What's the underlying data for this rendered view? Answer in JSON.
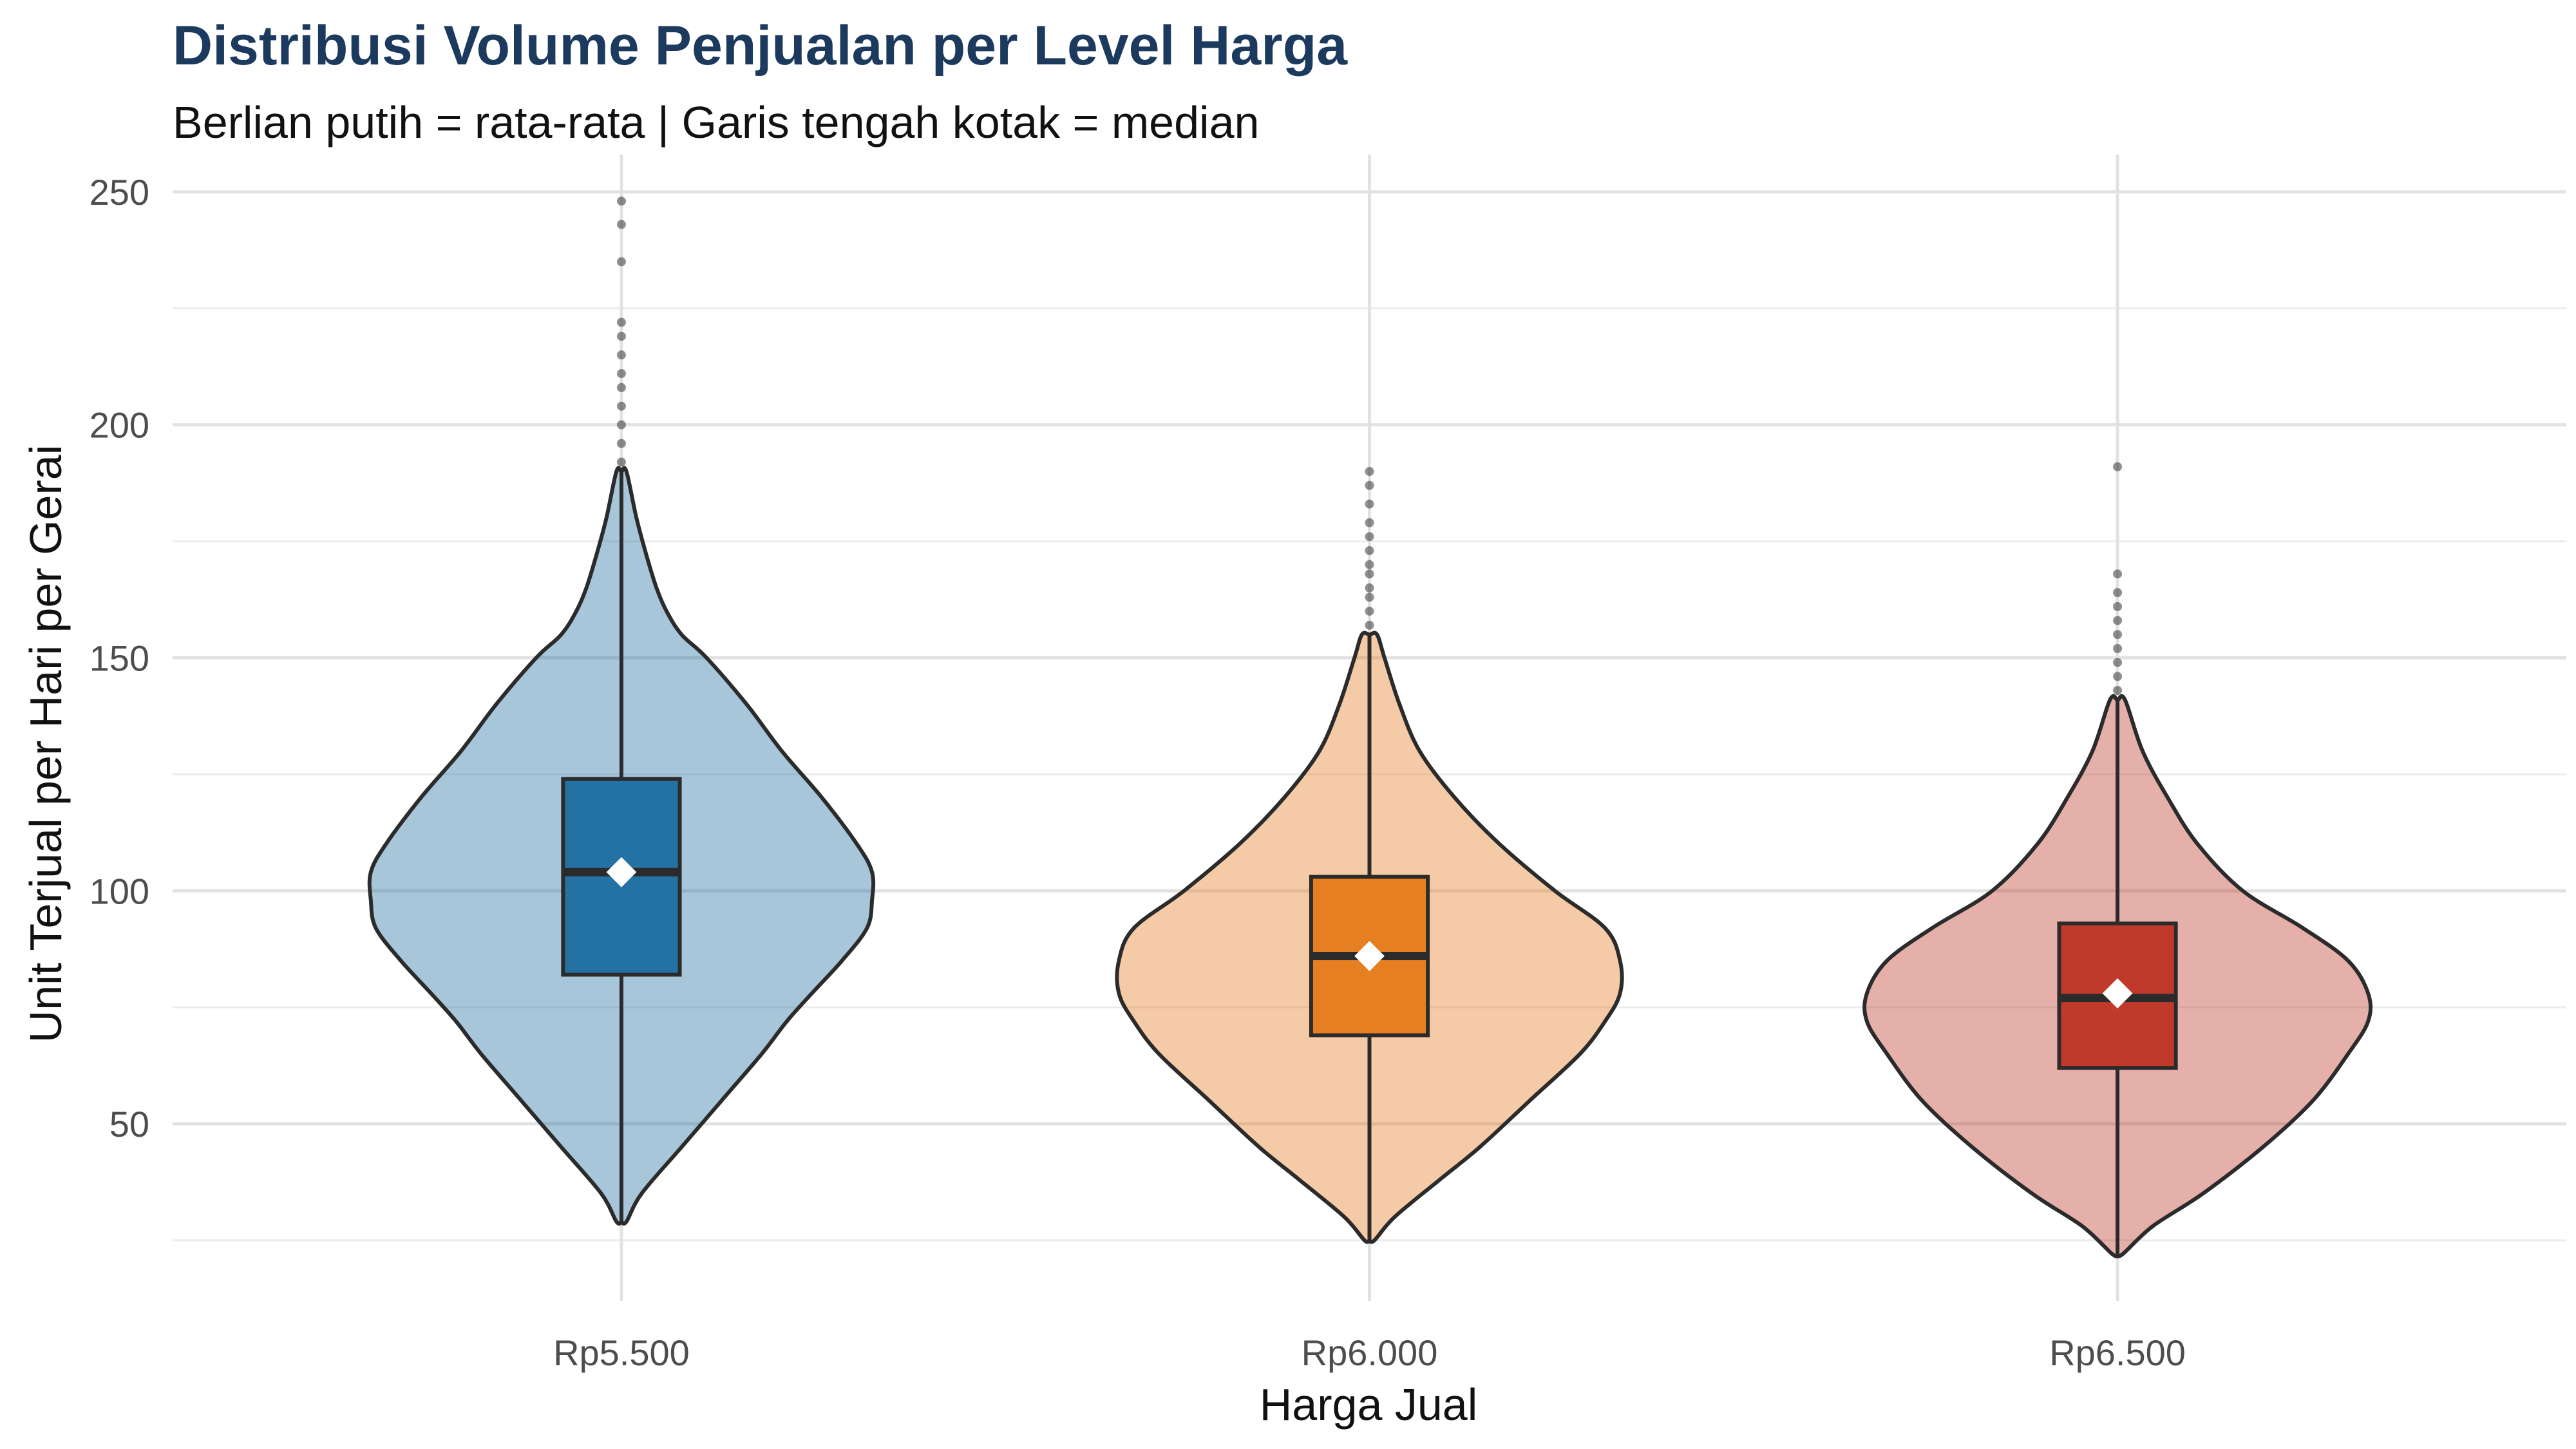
{
  "chart_data": {
    "type": "violin",
    "title": "Distribusi Volume Penjualan per Level Harga",
    "subtitle": "Berlian putih = rata-rata | Garis tengah kotak = median",
    "xlabel": "Harga Jual",
    "ylabel": "Unit Terjual per Hari per Gerai",
    "ylim": [
      12,
      258
    ],
    "yticks": [
      50,
      100,
      150,
      200,
      250
    ],
    "grid": true,
    "legend": "none",
    "categories": [
      "Rp5.500",
      "Rp6.000",
      "Rp6.500"
    ],
    "series": [
      {
        "category": "Rp5.500",
        "color": "#2471a3",
        "box": {
          "q1": 82,
          "median": 104,
          "q3": 124
        },
        "mean": 104,
        "whisker_low": 29,
        "whisker_high": 190,
        "outliers": [
          192,
          196,
          200,
          204,
          208,
          211,
          215,
          219,
          222,
          235,
          243,
          248
        ],
        "density": [
          [
            29,
            0.02
          ],
          [
            35,
            0.08
          ],
          [
            45,
            0.24
          ],
          [
            55,
            0.4
          ],
          [
            65,
            0.56
          ],
          [
            72,
            0.66
          ],
          [
            78,
            0.76
          ],
          [
            85,
            0.88
          ],
          [
            92,
            0.98
          ],
          [
            98,
            1.0
          ],
          [
            104,
            1.0
          ],
          [
            110,
            0.94
          ],
          [
            120,
            0.8
          ],
          [
            130,
            0.64
          ],
          [
            140,
            0.5
          ],
          [
            150,
            0.34
          ],
          [
            155,
            0.24
          ],
          [
            160,
            0.18
          ],
          [
            165,
            0.14
          ],
          [
            172,
            0.1
          ],
          [
            180,
            0.06
          ],
          [
            190,
            0.02
          ]
        ]
      },
      {
        "category": "Rp6.000",
        "color": "#e67e22",
        "box": {
          "q1": 69,
          "median": 86,
          "q3": 103
        },
        "mean": 86,
        "whisker_low": 25,
        "whisker_high": 155,
        "outliers": [
          157,
          160,
          163,
          165,
          168,
          170,
          173,
          176,
          179,
          183,
          187,
          190
        ],
        "density": [
          [
            25,
            0.02
          ],
          [
            30,
            0.1
          ],
          [
            38,
            0.28
          ],
          [
            45,
            0.44
          ],
          [
            55,
            0.64
          ],
          [
            65,
            0.84
          ],
          [
            72,
            0.94
          ],
          [
            78,
            1.0
          ],
          [
            85,
            1.0
          ],
          [
            92,
            0.94
          ],
          [
            100,
            0.74
          ],
          [
            110,
            0.52
          ],
          [
            120,
            0.34
          ],
          [
            130,
            0.2
          ],
          [
            140,
            0.12
          ],
          [
            150,
            0.06
          ],
          [
            155,
            0.03
          ]
        ]
      },
      {
        "category": "Rp6.500",
        "color": "#c0392b",
        "box": {
          "q1": 62,
          "median": 77,
          "q3": 93
        },
        "mean": 78,
        "whisker_low": 22,
        "whisker_high": 141,
        "outliers": [
          143,
          146,
          149,
          152,
          155,
          158,
          161,
          164,
          168,
          191
        ],
        "density": [
          [
            22,
            0.02
          ],
          [
            28,
            0.14
          ],
          [
            35,
            0.34
          ],
          [
            45,
            0.58
          ],
          [
            55,
            0.78
          ],
          [
            65,
            0.92
          ],
          [
            72,
            1.0
          ],
          [
            78,
            1.0
          ],
          [
            85,
            0.92
          ],
          [
            92,
            0.74
          ],
          [
            100,
            0.5
          ],
          [
            110,
            0.32
          ],
          [
            120,
            0.2
          ],
          [
            130,
            0.1
          ],
          [
            141,
            0.03
          ]
        ]
      }
    ]
  }
}
